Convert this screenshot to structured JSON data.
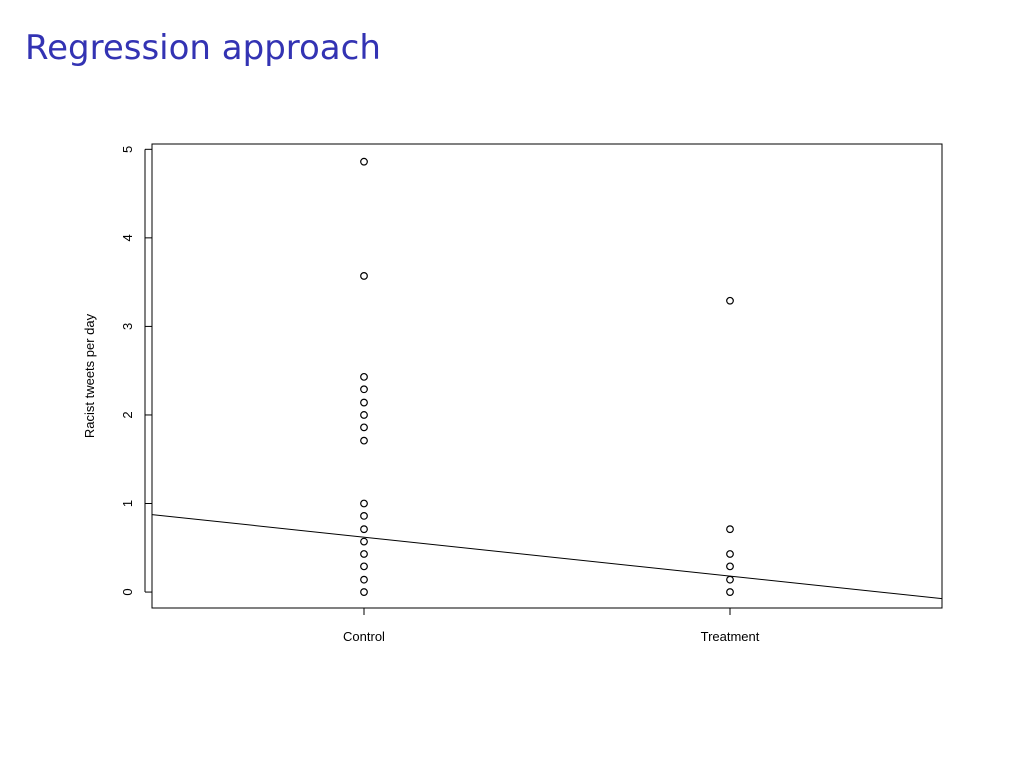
{
  "chart_data": {
    "type": "stripchart",
    "title": "Regression approach",
    "y_label": "Racist tweets per day",
    "categories": [
      "Control",
      "Treatment"
    ],
    "values": [
      [
        4.86,
        3.57,
        2.43,
        2.29,
        2.14,
        2.0,
        1.86,
        1.71,
        1.0,
        0.86,
        0.71,
        0.57,
        0.43,
        0.29,
        0.14,
        0
      ],
      [
        3.29,
        0.71,
        0.43,
        0.29,
        0.14,
        0
      ]
    ],
    "regression": {
      "intercept": 0.62,
      "slope": -0.44
    },
    "color": "#000000",
    "ylim": [
      -0.18,
      5.06
    ],
    "yticks": [
      0,
      1,
      2,
      3,
      4,
      5
    ]
  }
}
